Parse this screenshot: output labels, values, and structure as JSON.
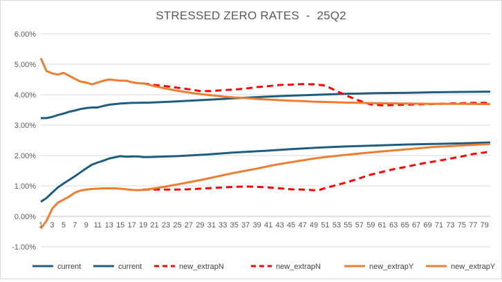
{
  "chart_data": {
    "type": "line",
    "title": "STRESSED ZERO RATES  -  25Q2",
    "xlabel": "",
    "ylabel": "",
    "ylim": [
      -0.01,
      0.06
    ],
    "yticks": [
      "-1.00%",
      "0.00%",
      "1.00%",
      "2.00%",
      "3.00%",
      "4.00%",
      "5.00%",
      "6.00%"
    ],
    "grid": "horizontal",
    "legend_position": "bottom",
    "xticks": [
      "1",
      "3",
      "5",
      "7",
      "9",
      "11",
      "13",
      "15",
      "17",
      "19",
      "21",
      "23",
      "25",
      "27",
      "29",
      "31",
      "33",
      "35",
      "37",
      "39",
      "41",
      "43",
      "45",
      "47",
      "49",
      "51",
      "53",
      "55",
      "57",
      "59",
      "61",
      "63",
      "65",
      "67",
      "69",
      "71",
      "73",
      "75",
      "77",
      "79"
    ],
    "x_range": [
      1,
      80
    ],
    "series": [
      {
        "name": "current",
        "color": "#1f5d7e",
        "dash": "solid",
        "points": [
          [
            1,
            0.0323
          ],
          [
            2,
            0.0323
          ],
          [
            3,
            0.0327
          ],
          [
            4,
            0.0333
          ],
          [
            5,
            0.0338
          ],
          [
            6,
            0.0344
          ],
          [
            7,
            0.0348
          ],
          [
            8,
            0.0353
          ],
          [
            9,
            0.0356
          ],
          [
            10,
            0.0358
          ],
          [
            11,
            0.0358
          ],
          [
            12,
            0.0363
          ],
          [
            13,
            0.0367
          ],
          [
            14,
            0.0369
          ],
          [
            15,
            0.0371
          ],
          [
            17,
            0.0373
          ],
          [
            20,
            0.0374
          ],
          [
            25,
            0.0378
          ],
          [
            30,
            0.0383
          ],
          [
            35,
            0.0388
          ],
          [
            40,
            0.0393
          ],
          [
            45,
            0.0397
          ],
          [
            50,
            0.04
          ],
          [
            55,
            0.0403
          ],
          [
            60,
            0.0405
          ],
          [
            65,
            0.0406
          ],
          [
            70,
            0.0408
          ],
          [
            75,
            0.0409
          ],
          [
            80,
            0.041
          ]
        ]
      },
      {
        "name": "current",
        "color": "#1f5d7e",
        "dash": "solid",
        "points": [
          [
            1,
            0.0048
          ],
          [
            2,
            0.006
          ],
          [
            3,
            0.0078
          ],
          [
            4,
            0.0095
          ],
          [
            5,
            0.0108
          ],
          [
            6,
            0.012
          ],
          [
            7,
            0.0132
          ],
          [
            8,
            0.0145
          ],
          [
            9,
            0.0158
          ],
          [
            10,
            0.017
          ],
          [
            11,
            0.0177
          ],
          [
            12,
            0.0183
          ],
          [
            13,
            0.019
          ],
          [
            14,
            0.0194
          ],
          [
            15,
            0.0198
          ],
          [
            16,
            0.0196
          ],
          [
            17,
            0.0197
          ],
          [
            18,
            0.0197
          ],
          [
            19,
            0.0195
          ],
          [
            20,
            0.0195
          ],
          [
            25,
            0.0198
          ],
          [
            30,
            0.0203
          ],
          [
            35,
            0.021
          ],
          [
            40,
            0.0215
          ],
          [
            45,
            0.0221
          ],
          [
            50,
            0.0226
          ],
          [
            55,
            0.023
          ],
          [
            60,
            0.0233
          ],
          [
            65,
            0.0236
          ],
          [
            70,
            0.0238
          ],
          [
            75,
            0.024
          ],
          [
            80,
            0.0243
          ]
        ]
      },
      {
        "name": "new_extrapN",
        "color": "#ff0000",
        "dash": "dashed",
        "points": [
          [
            19,
            0.0437
          ],
          [
            21,
            0.0432
          ],
          [
            23,
            0.0428
          ],
          [
            25,
            0.0423
          ],
          [
            27,
            0.0418
          ],
          [
            29,
            0.0412
          ],
          [
            31,
            0.0412
          ],
          [
            33,
            0.0415
          ],
          [
            35,
            0.0417
          ],
          [
            37,
            0.042
          ],
          [
            39,
            0.0425
          ],
          [
            41,
            0.0428
          ],
          [
            43,
            0.0432
          ],
          [
            45,
            0.0433
          ],
          [
            47,
            0.0435
          ],
          [
            49,
            0.0434
          ],
          [
            50,
            0.0432
          ],
          [
            51,
            0.043
          ],
          [
            53,
            0.0412
          ],
          [
            55,
            0.0395
          ],
          [
            57,
            0.038
          ],
          [
            59,
            0.0368
          ],
          [
            61,
            0.0365
          ],
          [
            63,
            0.0366
          ],
          [
            65,
            0.0367
          ],
          [
            67,
            0.0368
          ],
          [
            69,
            0.0369
          ],
          [
            71,
            0.037
          ],
          [
            73,
            0.0371
          ],
          [
            75,
            0.0372
          ],
          [
            77,
            0.0373
          ],
          [
            79,
            0.0373
          ],
          [
            80,
            0.0373
          ]
        ]
      },
      {
        "name": "new_extrapN",
        "color": "#ff0000",
        "dash": "dashed",
        "points": [
          [
            19,
            0.0088
          ],
          [
            21,
            0.0088
          ],
          [
            23,
            0.0088
          ],
          [
            25,
            0.0088
          ],
          [
            27,
            0.0089
          ],
          [
            29,
            0.0091
          ],
          [
            31,
            0.0093
          ],
          [
            33,
            0.0095
          ],
          [
            35,
            0.0097
          ],
          [
            37,
            0.0098
          ],
          [
            39,
            0.0097
          ],
          [
            41,
            0.0095
          ],
          [
            43,
            0.0092
          ],
          [
            45,
            0.0089
          ],
          [
            47,
            0.0088
          ],
          [
            49,
            0.0086
          ],
          [
            50,
            0.0087
          ],
          [
            51,
            0.0093
          ],
          [
            53,
            0.0103
          ],
          [
            55,
            0.0113
          ],
          [
            57,
            0.0125
          ],
          [
            59,
            0.0137
          ],
          [
            61,
            0.0146
          ],
          [
            63,
            0.0155
          ],
          [
            65,
            0.0162
          ],
          [
            67,
            0.017
          ],
          [
            69,
            0.0177
          ],
          [
            71,
            0.0183
          ],
          [
            73,
            0.019
          ],
          [
            75,
            0.0197
          ],
          [
            77,
            0.0205
          ],
          [
            79,
            0.021
          ],
          [
            80,
            0.0213
          ]
        ]
      },
      {
        "name": "new_extrapY",
        "color": "#ed7d31",
        "dash": "solid",
        "points": [
          [
            1,
            0.052
          ],
          [
            2,
            0.0478
          ],
          [
            3,
            0.047
          ],
          [
            4,
            0.0466
          ],
          [
            5,
            0.0472
          ],
          [
            6,
            0.0462
          ],
          [
            7,
            0.0452
          ],
          [
            8,
            0.0443
          ],
          [
            9,
            0.044
          ],
          [
            10,
            0.0434
          ],
          [
            11,
            0.044
          ],
          [
            12,
            0.0446
          ],
          [
            13,
            0.045
          ],
          [
            14,
            0.0448
          ],
          [
            15,
            0.0446
          ],
          [
            16,
            0.0446
          ],
          [
            17,
            0.0441
          ],
          [
            18,
            0.0438
          ],
          [
            19,
            0.0437
          ],
          [
            21,
            0.0428
          ],
          [
            23,
            0.042
          ],
          [
            25,
            0.0413
          ],
          [
            27,
            0.0407
          ],
          [
            29,
            0.0402
          ],
          [
            31,
            0.0398
          ],
          [
            33,
            0.0394
          ],
          [
            35,
            0.0391
          ],
          [
            37,
            0.0389
          ],
          [
            39,
            0.0386
          ],
          [
            41,
            0.0384
          ],
          [
            43,
            0.0382
          ],
          [
            45,
            0.038
          ],
          [
            47,
            0.0379
          ],
          [
            49,
            0.0377
          ],
          [
            51,
            0.0376
          ],
          [
            55,
            0.0374
          ],
          [
            60,
            0.0372
          ],
          [
            65,
            0.0371
          ],
          [
            70,
            0.037
          ],
          [
            75,
            0.037
          ],
          [
            80,
            0.0369
          ]
        ]
      },
      {
        "name": "new_extrapY",
        "color": "#ed7d31",
        "dash": "solid",
        "points": [
          [
            1,
            -0.004
          ],
          [
            2,
            -0.0015
          ],
          [
            3,
            0.0025
          ],
          [
            4,
            0.0045
          ],
          [
            5,
            0.0055
          ],
          [
            6,
            0.0065
          ],
          [
            7,
            0.0078
          ],
          [
            8,
            0.0085
          ],
          [
            9,
            0.0088
          ],
          [
            10,
            0.009
          ],
          [
            11,
            0.0091
          ],
          [
            12,
            0.0092
          ],
          [
            13,
            0.0092
          ],
          [
            14,
            0.0092
          ],
          [
            15,
            0.0091
          ],
          [
            16,
            0.0089
          ],
          [
            17,
            0.0087
          ],
          [
            18,
            0.0086
          ],
          [
            19,
            0.0087
          ],
          [
            21,
            0.0092
          ],
          [
            23,
            0.0098
          ],
          [
            25,
            0.0105
          ],
          [
            27,
            0.0112
          ],
          [
            29,
            0.0119
          ],
          [
            31,
            0.0127
          ],
          [
            33,
            0.0135
          ],
          [
            35,
            0.0143
          ],
          [
            37,
            0.015
          ],
          [
            39,
            0.0157
          ],
          [
            41,
            0.0165
          ],
          [
            43,
            0.0172
          ],
          [
            45,
            0.0178
          ],
          [
            47,
            0.0184
          ],
          [
            49,
            0.019
          ],
          [
            51,
            0.0195
          ],
          [
            55,
            0.0203
          ],
          [
            60,
            0.0212
          ],
          [
            65,
            0.022
          ],
          [
            70,
            0.0228
          ],
          [
            75,
            0.0233
          ],
          [
            80,
            0.0238
          ]
        ]
      }
    ]
  }
}
